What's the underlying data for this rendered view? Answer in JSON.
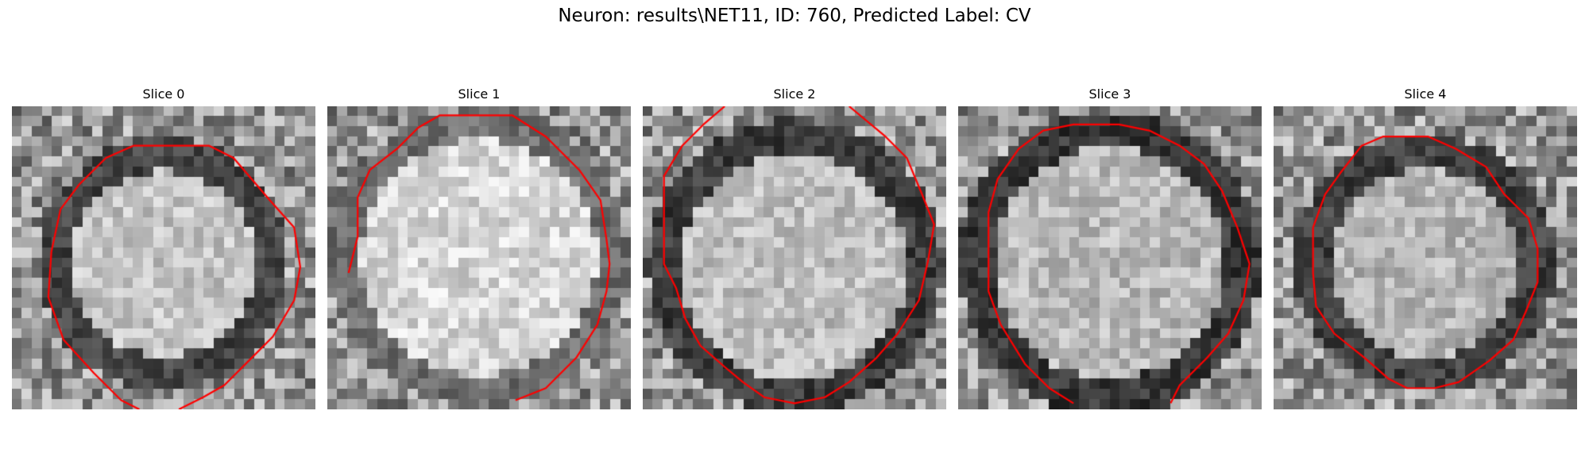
{
  "figure": {
    "title": "Neuron: results\\NET11, ID: 760, Predicted Label: CV"
  },
  "panels": [
    {
      "title": "Slice 0"
    },
    {
      "title": "Slice 1"
    },
    {
      "title": "Slice 2"
    },
    {
      "title": "Slice 3"
    },
    {
      "title": "Slice 4"
    }
  ],
  "colors": {
    "contour": "#ff0000",
    "dark_ring": "#3a3a3a",
    "interior": "#c8c8c8"
  }
}
